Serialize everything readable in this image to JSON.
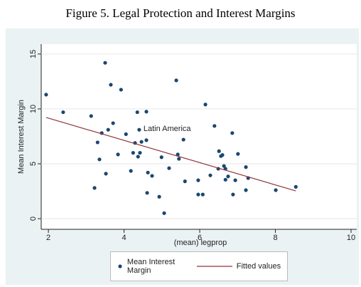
{
  "chart_data": {
    "type": "scatter",
    "title": "Figure 5. Legal Protection and Interest Margins",
    "x_label": "(mean) legprop",
    "y_label": "Mean Interest Margin",
    "xlim": [
      1.81,
      10.15
    ],
    "ylim": [
      -0.97,
      15.9
    ],
    "xticks": [
      2,
      4,
      6,
      8,
      10
    ],
    "yticks": [
      0,
      5,
      10,
      15
    ],
    "grid": true,
    "series": [
      {
        "name": "Mean Interest Margin",
        "type": "scatter",
        "color": "#1a476f",
        "x": [
          1.94,
          2.39,
          3.13,
          3.22,
          3.3,
          3.35,
          3.41,
          3.5,
          3.52,
          3.58,
          3.65,
          3.71,
          3.84,
          3.92,
          4.05,
          4.18,
          4.24,
          4.29,
          4.35,
          4.37,
          4.4,
          4.42,
          4.46,
          4.59,
          4.59,
          4.63,
          4.61,
          4.74,
          4.93,
          4.99,
          5.06,
          5.19,
          5.38,
          5.42,
          5.45,
          5.57,
          5.61,
          5.96,
          5.96,
          6.08,
          6.15,
          6.28,
          6.39,
          6.49,
          6.51,
          6.56,
          6.6,
          6.64,
          6.68,
          6.68,
          6.75,
          6.88,
          6.86,
          6.94,
          7.01,
          7.22,
          7.22,
          7.28,
          8.01,
          8.54
        ],
        "values": [
          11.3,
          9.7,
          9.35,
          2.8,
          6.95,
          5.4,
          7.8,
          14.2,
          4.1,
          8.1,
          12.2,
          8.7,
          5.85,
          11.75,
          7.7,
          4.35,
          6.0,
          6.9,
          9.7,
          5.65,
          8.1,
          6.0,
          7.0,
          7.15,
          9.75,
          4.2,
          2.35,
          3.9,
          2.0,
          5.6,
          0.5,
          4.6,
          12.6,
          5.85,
          5.45,
          7.2,
          3.4,
          3.5,
          2.2,
          2.2,
          10.4,
          3.95,
          8.45,
          4.55,
          6.15,
          5.7,
          5.8,
          4.8,
          4.55,
          3.55,
          3.85,
          2.2,
          7.8,
          3.5,
          5.9,
          4.7,
          2.6,
          3.7,
          2.6,
          2.9
        ],
        "point_labels": [
          null,
          null,
          null,
          null,
          null,
          null,
          null,
          null,
          null,
          null,
          null,
          null,
          null,
          null,
          null,
          null,
          null,
          null,
          null,
          null,
          "Latin America",
          null,
          null,
          null,
          null,
          null,
          null,
          null,
          null,
          null,
          null,
          null,
          null,
          null,
          null,
          null,
          null,
          null,
          null,
          null,
          null,
          null,
          null,
          null,
          null,
          null,
          null,
          null,
          null,
          null,
          null,
          null,
          null,
          null,
          null,
          null,
          null,
          null,
          null,
          null
        ]
      },
      {
        "name": "Fitted values",
        "type": "line",
        "color": "#90353b",
        "x": [
          1.94,
          8.54
        ],
        "values": [
          9.22,
          2.53
        ]
      }
    ]
  }
}
